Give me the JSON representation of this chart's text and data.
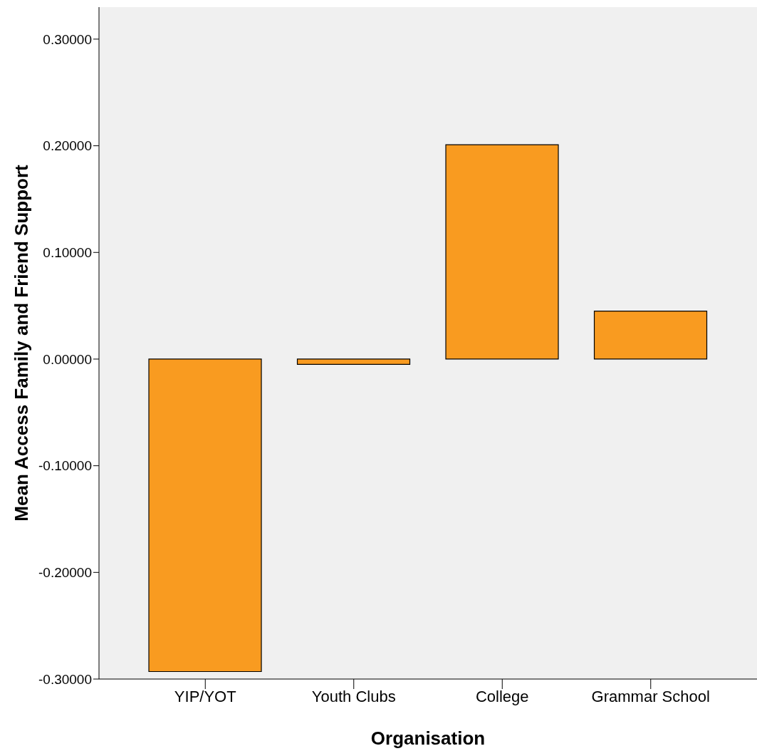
{
  "chart_data": {
    "type": "bar",
    "xlabel": "Organisation",
    "ylabel": "Mean Access Family and Friend Support",
    "categories": [
      "YIP/YOT",
      "Youth Clubs",
      "College",
      "Grammar School"
    ],
    "values": [
      -0.293,
      -0.005,
      0.201,
      0.045
    ],
    "color": "#f99b20",
    "ylim": [
      -0.3,
      0.33
    ],
    "yticks": [
      {
        "value": -0.3,
        "label": "-0.30000"
      },
      {
        "value": -0.2,
        "label": "-0.20000"
      },
      {
        "value": -0.1,
        "label": "-0.10000"
      },
      {
        "value": 0,
        "label": "0.00000"
      },
      {
        "value": 0.1,
        "label": "0.10000"
      },
      {
        "value": 0.2,
        "label": "0.20000"
      },
      {
        "value": 0.3,
        "label": "0.30000"
      }
    ],
    "grid": false,
    "legend": false
  }
}
